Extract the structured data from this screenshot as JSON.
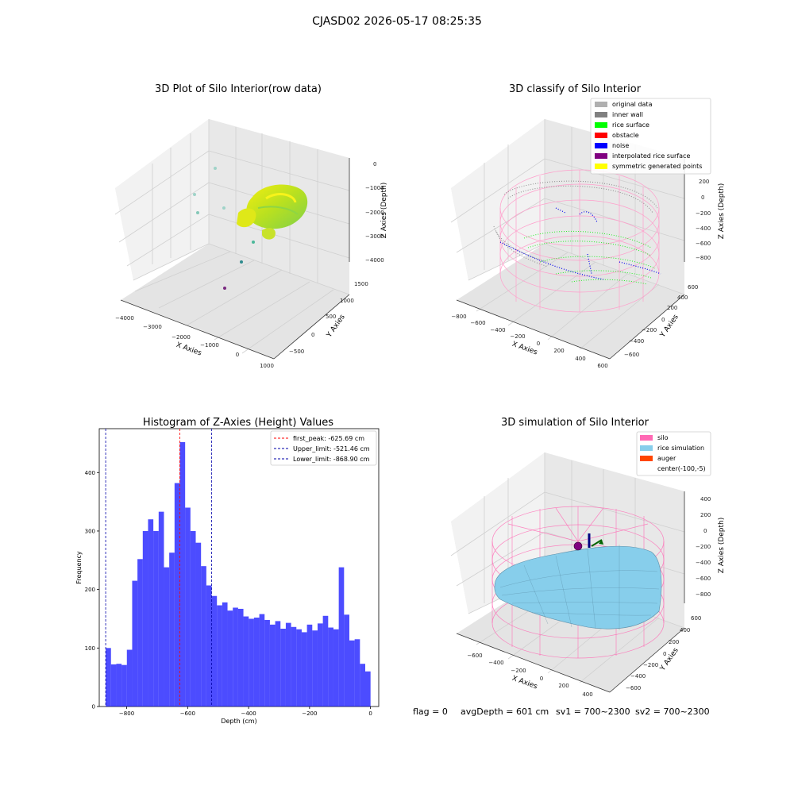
{
  "figure": {
    "suptitle": "CJASD02 2026-05-17 08:25:35"
  },
  "chart_data": [
    {
      "id": "raw",
      "type": "scatter",
      "projection": "3d",
      "title": "3D Plot of Silo Interior(row data)",
      "xlabel": "X Axies",
      "ylabel": "Y Axies",
      "zlabel": "Z Axies (Depth)",
      "x_ticks": [
        "−4000",
        "−3000",
        "−2000",
        "−1000",
        "0",
        "1000"
      ],
      "y_ticks": [
        "−500",
        "0",
        "500",
        "1000",
        "1500"
      ],
      "z_ticks": [
        "0",
        "−1000",
        "−2000",
        "−3000",
        "−4000"
      ],
      "grid": true
    },
    {
      "id": "classify",
      "type": "scatter",
      "projection": "3d",
      "title": "3D classify of Silo Interior",
      "xlabel": "X Axies",
      "ylabel": "Y Axies",
      "zlabel": "Z Axies (Depth)",
      "x_ticks": [
        "−800",
        "−600",
        "−400",
        "−200",
        "0",
        "200",
        "400",
        "600"
      ],
      "y_ticks": [
        "−600",
        "−400",
        "−200",
        "0",
        "200",
        "400",
        "600"
      ],
      "z_ticks": [
        "200",
        "0",
        "−200",
        "−400",
        "−600",
        "−800"
      ],
      "grid": true,
      "legend": {
        "placement": "top-right",
        "entries": [
          {
            "label": "original data",
            "color": "#b0b0b0"
          },
          {
            "label": "inner wall",
            "color": "#808080"
          },
          {
            "label": "rice surface",
            "color": "#00ff00"
          },
          {
            "label": "obstacle",
            "color": "#ff0000"
          },
          {
            "label": "noise",
            "color": "#0000ff"
          },
          {
            "label": "interpolated rice surface",
            "color": "#800080"
          },
          {
            "label": "symmetric generated points",
            "color": "#ffff00"
          }
        ]
      }
    },
    {
      "id": "hist",
      "type": "bar",
      "title": "Histogram of Z-Axies (Height) Values",
      "xlabel": "Depth (cm)",
      "ylabel": "Frequency",
      "xlim": [
        -890,
        27
      ],
      "ylim": [
        0,
        475
      ],
      "bin_start": -868.9,
      "bin_width": 17.38,
      "values": [
        100,
        72,
        73,
        71,
        97,
        215,
        252,
        300,
        320,
        300,
        333,
        238,
        263,
        382,
        452,
        340,
        300,
        280,
        240,
        207,
        189,
        173,
        178,
        164,
        169,
        167,
        154,
        150,
        152,
        158,
        148,
        140,
        146,
        133,
        143,
        136,
        132,
        127,
        140,
        130,
        142,
        155,
        135,
        132,
        238,
        157,
        113,
        115,
        73,
        60
      ],
      "bar_color": "#0000ff",
      "bar_opacity": 0.7,
      "x_ticks": [
        -800,
        -600,
        -400,
        -200,
        0
      ],
      "y_ticks": [
        0,
        100,
        200,
        300,
        400
      ],
      "lines": [
        {
          "label": "first_peak: -625.69 cm",
          "x": -625.69,
          "color": "#ff0000"
        },
        {
          "label": "Upper_limit: -521.46 cm",
          "x": -521.46,
          "color": "#0000aa"
        },
        {
          "label": "Lower_limit: -868.90 cm",
          "x": -868.9,
          "color": "#0000aa"
        }
      ],
      "legend": {
        "placement": "top-right"
      }
    },
    {
      "id": "simulation",
      "type": "surface",
      "projection": "3d",
      "title": "3D simulation of Silo Interior",
      "xlabel": "X Axies",
      "ylabel": "Y Axies",
      "zlabel": "Z Axies (Depth)",
      "x_ticks": [
        "−600",
        "−400",
        "−200",
        "0",
        "200",
        "400"
      ],
      "y_ticks": [
        "−600",
        "−400",
        "−200",
        "0",
        "200",
        "400",
        "600"
      ],
      "z_ticks": [
        "400",
        "200",
        "0",
        "−200",
        "−400",
        "−600",
        "−800"
      ],
      "grid": true,
      "legend": {
        "placement": "top-right",
        "entries": [
          {
            "label": "silo",
            "color": "#ff69b4"
          },
          {
            "label": "rice simulation",
            "color": "#87ceeb"
          },
          {
            "label": "auger",
            "color": "#ff4500"
          },
          {
            "label": "center(-100,-5)",
            "color": ""
          }
        ]
      }
    }
  ],
  "status": {
    "flag": "flag = 0",
    "avg_depth": "avgDepth = 601 cm",
    "sv1": "sv1 = 700~2300",
    "sv2": "sv2 = 700~2300"
  }
}
